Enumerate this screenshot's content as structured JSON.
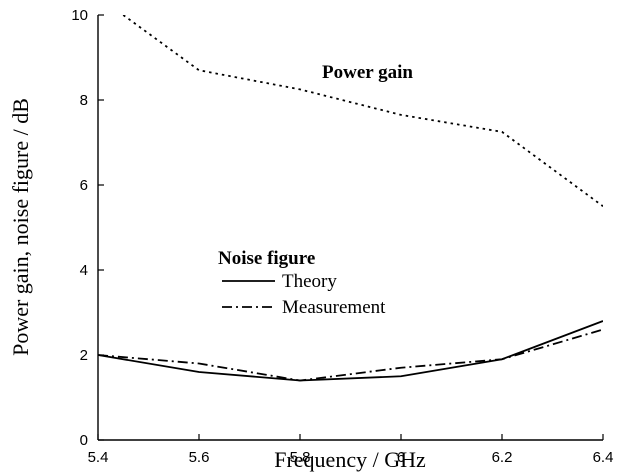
{
  "chart_data": {
    "type": "line",
    "xlabel": "Frequency / GHz",
    "ylabel": "Power gain, noise figure / dB",
    "xlim": [
      5.4,
      6.4
    ],
    "xticks": [
      5.4,
      5.6,
      5.8,
      6,
      6.2,
      6.4
    ],
    "ylim": [
      0,
      10
    ],
    "yticks": [
      0,
      2,
      4,
      6,
      8,
      10
    ],
    "annotations": [
      "Power gain",
      "Noise figure"
    ],
    "series": [
      {
        "name": "Power gain",
        "color": "#000000",
        "dash": "dotted",
        "x": [
          5.45,
          5.6,
          5.8,
          6.0,
          6.2,
          6.4
        ],
        "values": [
          10,
          8.7,
          8.25,
          7.65,
          7.25,
          5.5
        ]
      },
      {
        "name": "Theory",
        "color": "#000000",
        "dash": "solid",
        "x": [
          5.4,
          5.6,
          5.8,
          6.0,
          6.2,
          6.4
        ],
        "values": [
          2.0,
          1.6,
          1.4,
          1.5,
          1.9,
          2.8
        ]
      },
      {
        "name": "Measurement",
        "color": "#000000",
        "dash": "dashdot",
        "x": [
          5.4,
          5.6,
          5.8,
          6.0,
          6.2,
          6.4
        ],
        "values": [
          2.0,
          1.8,
          1.4,
          1.7,
          1.9,
          2.6
        ]
      }
    ]
  }
}
